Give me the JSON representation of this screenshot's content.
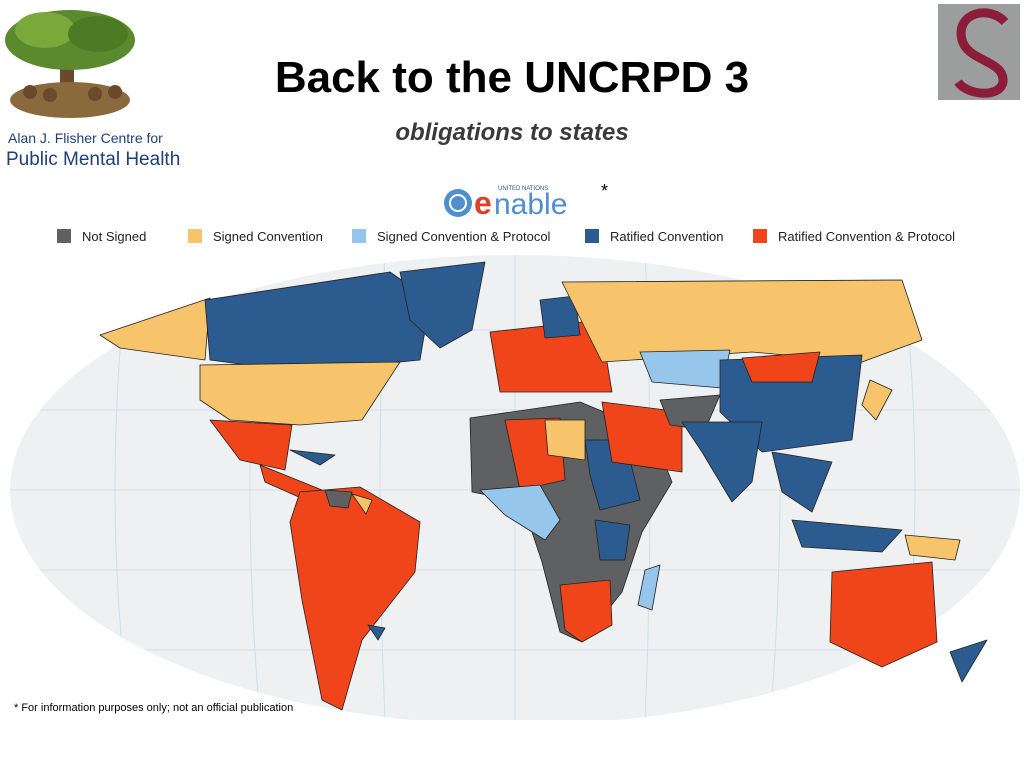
{
  "header": {
    "title": "Back to the UNCRPD 3",
    "subtitle": "obligations to states"
  },
  "logo": {
    "line1": "Alan J. Flisher Centre for",
    "line2": "Public Mental Health"
  },
  "map": {
    "brand": {
      "org": "UNITED NATIONS",
      "e": "e",
      "rest": "nable",
      "mark": "*"
    },
    "legend": [
      {
        "label": "Not Signed",
        "color": "#5f6062"
      },
      {
        "label": "Signed Convention",
        "color": "#f7c46c"
      },
      {
        "label": "Signed Convention & Protocol",
        "color": "#97c6ec"
      },
      {
        "label": "Ratified Convention",
        "color": "#2c5b8f"
      },
      {
        "label": "Ratified Convention & Protocol",
        "color": "#f0451b"
      }
    ],
    "footnote": "* For information purposes only; not an official publication"
  }
}
